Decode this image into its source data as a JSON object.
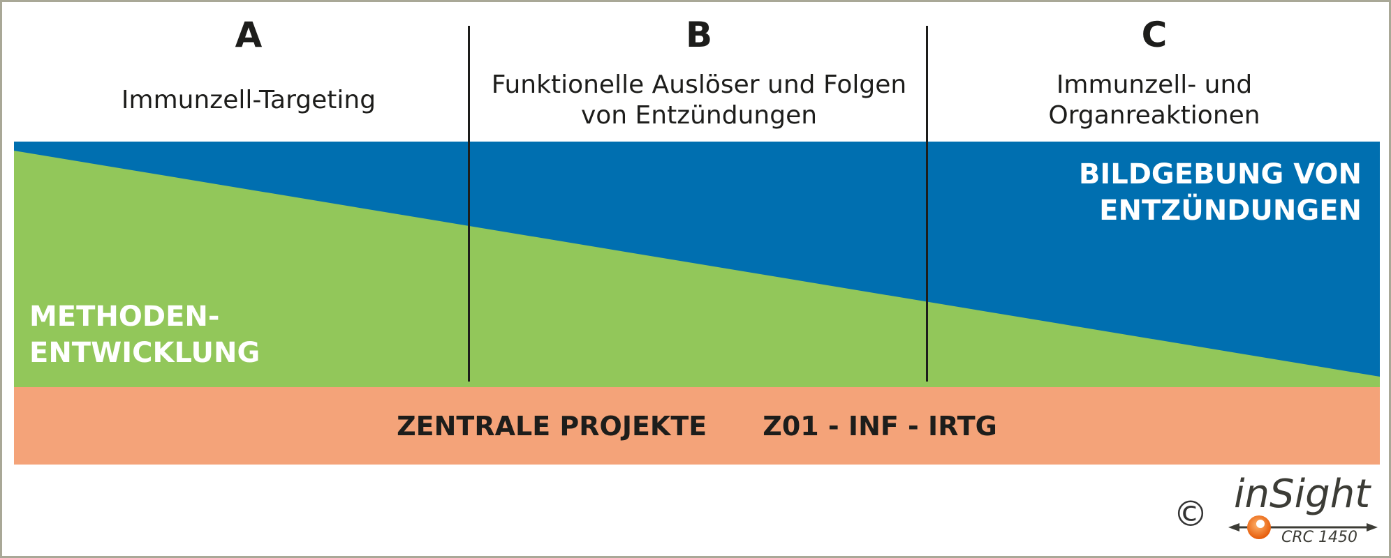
{
  "columns": [
    {
      "letter": "A",
      "line1": "Immunzell-Targeting",
      "line2": ""
    },
    {
      "letter": "B",
      "line1": "Funktionelle Auslöser und Folgen",
      "line2": "von Entzündungen"
    },
    {
      "letter": "C",
      "line1": "Immunzell- und",
      "line2": "Organreaktionen"
    }
  ],
  "imaging": {
    "line1": "BILDGEBUNG VON",
    "line2": "ENTZÜNDUNGEN"
  },
  "methods": {
    "line1": "METHODEN-",
    "line2": "ENTWICKLUNG"
  },
  "central": {
    "label": "ZENTRALE PROJEKTE",
    "projects": "Z01 - INF - IRTG"
  },
  "copyright": "©",
  "logo": {
    "name": "inSight",
    "sub": "CRC 1450"
  },
  "colors": {
    "imaging": "#006fb0",
    "methods": "#92c75a",
    "central": "#f4a379",
    "logo_dot": "#ea6a0c"
  }
}
